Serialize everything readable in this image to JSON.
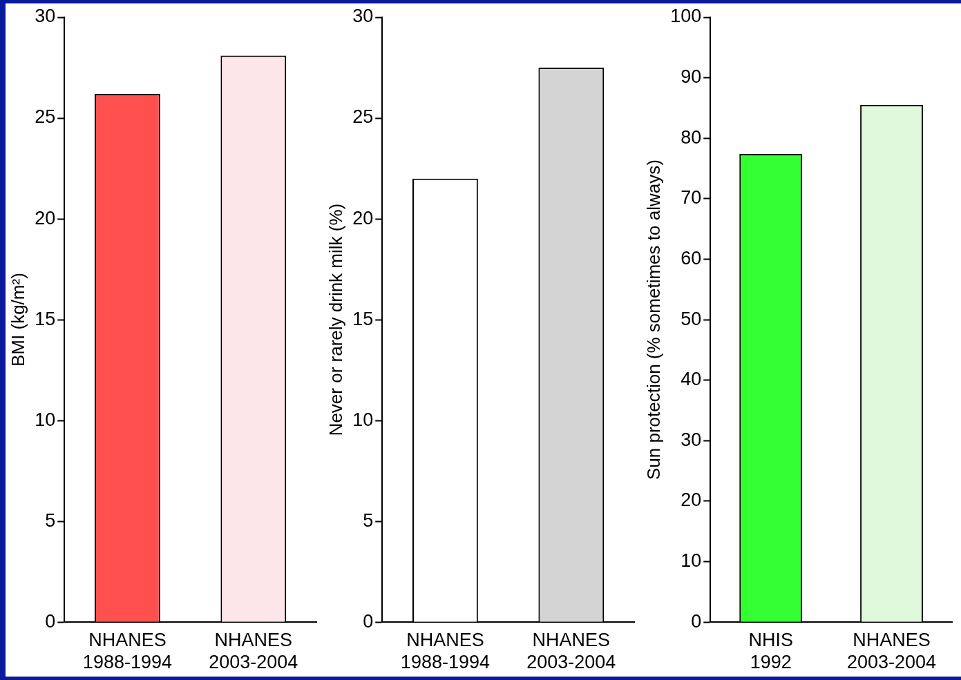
{
  "chart_data": [
    {
      "type": "bar",
      "ylabel": "BMI (kg/m²)",
      "categories": [
        "NHANES 1988-1994",
        "NHANES 2003-2004"
      ],
      "values": [
        26.2,
        28.1
      ],
      "colors": [
        "#ff5050",
        "#fde6ea"
      ],
      "ylim": [
        0,
        30
      ],
      "yticks": [
        0,
        5,
        10,
        15,
        20,
        25,
        30
      ],
      "grid": false,
      "legend": false
    },
    {
      "type": "bar",
      "ylabel": "Never or rarely drink milk (%)",
      "categories": [
        "NHANES 1988-1994",
        "NHANES 2003-2004"
      ],
      "values": [
        22.0,
        27.5
      ],
      "colors": [
        "#ffffff",
        "#d4d4d4"
      ],
      "ylim": [
        0,
        30
      ],
      "yticks": [
        0,
        5,
        10,
        15,
        20,
        25,
        30
      ],
      "grid": false,
      "legend": false
    },
    {
      "type": "bar",
      "ylabel": "Sun protection (% sometimes to always)",
      "categories": [
        "NHIS 1992",
        "NHANES 2003-2004"
      ],
      "values": [
        77.4,
        85.5
      ],
      "colors": [
        "#33ff33",
        "#e0f8dc"
      ],
      "ylim": [
        0,
        100
      ],
      "yticks": [
        0,
        10,
        20,
        30,
        40,
        50,
        60,
        70,
        80,
        90,
        100
      ],
      "grid": false,
      "legend": false
    }
  ]
}
